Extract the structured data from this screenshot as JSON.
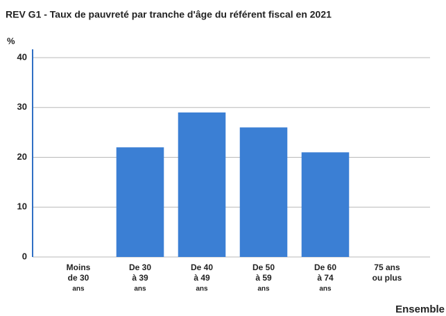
{
  "chart_data": {
    "type": "bar",
    "title": "REV G1 - Taux de pauvreté par tranche d'âge du référent fiscal en 2021",
    "y_label": "%",
    "categories": [
      [
        "Moins",
        "de 30",
        "ans"
      ],
      [
        "De 30",
        "à 39",
        "ans"
      ],
      [
        "De 40",
        "à 49",
        "ans"
      ],
      [
        "De 50",
        "à 59",
        "ans"
      ],
      [
        "De 60",
        "à 74",
        "ans"
      ],
      [
        "75 ans",
        "ou plus"
      ]
    ],
    "values": [
      null,
      22,
      29,
      26,
      21,
      null
    ],
    "color": "#3b7fd4",
    "ylim": [
      0,
      40
    ],
    "yticks": [
      0,
      10,
      20,
      30,
      40
    ],
    "grid": true,
    "annotation": "Ensemble"
  }
}
